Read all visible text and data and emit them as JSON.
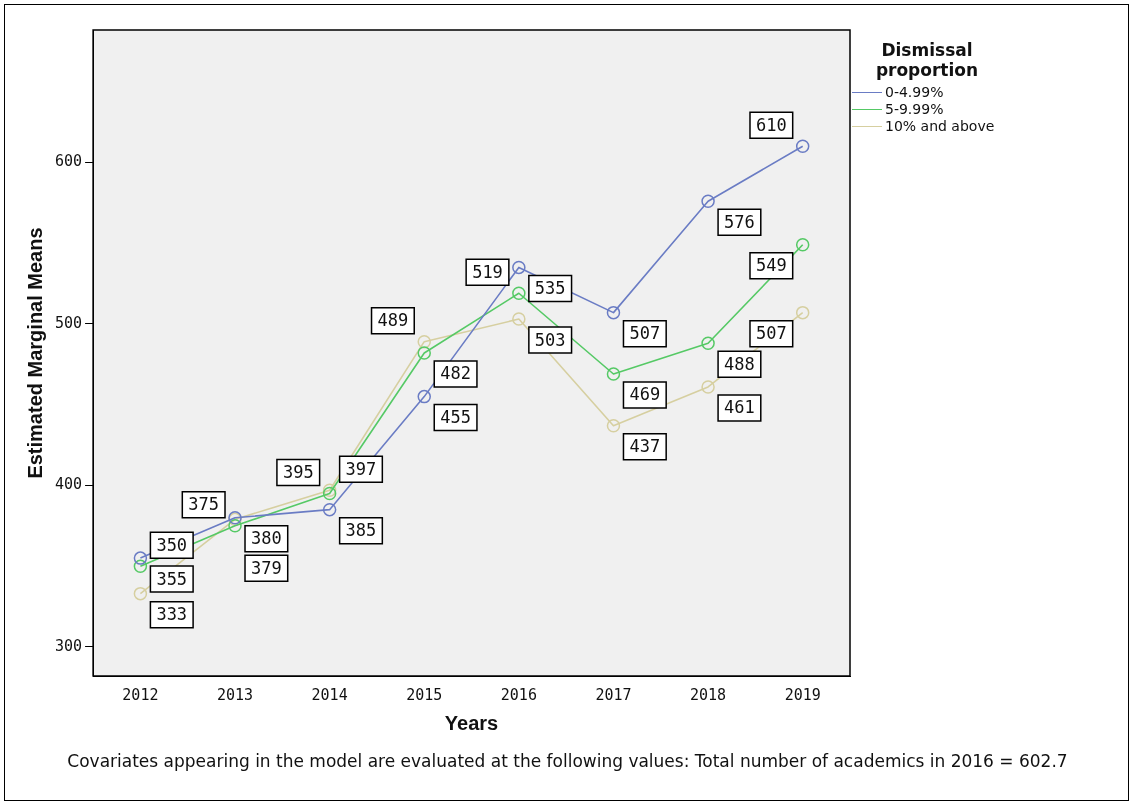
{
  "chart_data": {
    "type": "line",
    "xlabel": "Years",
    "ylabel": "Estimated Marginal Means",
    "legend_title": "Dismissal proportion",
    "legend": "top right",
    "marker": "circle",
    "data_labels": true,
    "grid": false,
    "categories": [
      "2012",
      "2013",
      "2014",
      "2015",
      "2016",
      "2017",
      "2018",
      "2019"
    ],
    "ylim": [
      282,
      682
    ],
    "yticks": [
      300,
      400,
      500,
      600
    ],
    "series": [
      {
        "name": "0-4.99%",
        "color": "#6a7cc4",
        "values": [
          355,
          380,
          385,
          455,
          535,
          507,
          576,
          610
        ]
      },
      {
        "name": "5-9.99%",
        "color": "#55c965",
        "values": [
          350,
          375,
          395,
          482,
          519,
          469,
          488,
          549
        ]
      },
      {
        "name": "10% and above",
        "color": "#d6cfa0",
        "values": [
          333,
          379,
          397,
          489,
          503,
          437,
          461,
          507
        ]
      }
    ],
    "annotations": [
      "Covariates appearing in the model are evaluated at the following values: Total number of academics in 2016 = 602.7"
    ]
  }
}
